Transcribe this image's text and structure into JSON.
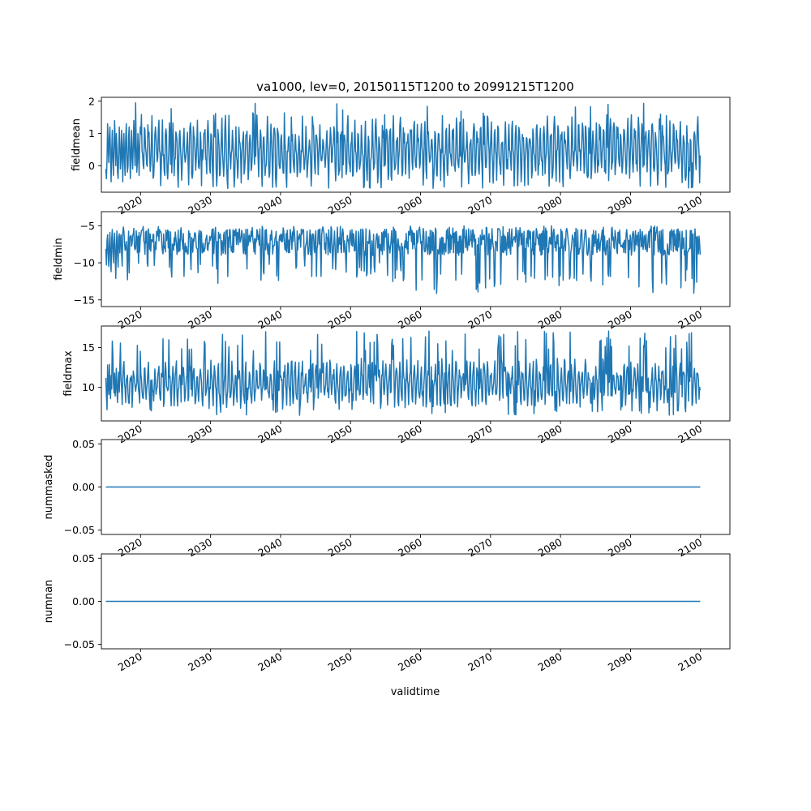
{
  "figure": {
    "title": "va1000, lev=0, 20150115T1200 to 20991215T1200",
    "xlabel": "validtime"
  },
  "chart_data": [
    {
      "type": "line",
      "ylabel": "fieldmean",
      "xlim": [
        2014.4,
        2104.2
      ],
      "ylim": [
        -0.82,
        2.12
      ],
      "yticks": [
        0,
        1,
        2
      ],
      "ytick_labels": [
        "0",
        "1",
        "2"
      ],
      "xticks": [
        2020,
        2030,
        2040,
        2050,
        2060,
        2070,
        2080,
        2090,
        2100
      ],
      "xtick_labels": [
        "2020",
        "2030",
        "2040",
        "2050",
        "2060",
        "2070",
        "2080",
        "2090",
        "2100"
      ],
      "series_note": "monthly values 2015-01 to 2099-12",
      "x": [
        2015.04,
        2015.12,
        2015.21,
        2015.29,
        2015.37,
        2015.46,
        2015.54,
        2015.62,
        2015.71,
        2015.79,
        2015.87,
        2015.96,
        2016.04,
        2016.12,
        2016.21,
        2016.29,
        2016.37,
        2016.46,
        2016.54,
        2016.62,
        2016.71,
        2016.79,
        2016.87,
        2016.96,
        2017.04,
        2017.12,
        2017.21,
        2017.29,
        2017.37,
        2017.46,
        2017.54,
        2017.62,
        2017.71,
        2017.79,
        2017.87,
        2017.96,
        2018.04,
        2018.12,
        2018.21,
        2018.29,
        2018.37,
        2018.46,
        2018.54,
        2018.62,
        2018.71,
        2018.79,
        2018.87,
        2018.96,
        2019.04,
        2019.12,
        2019.21,
        2019.29,
        2019.37,
        2019.46,
        2019.54,
        2019.62,
        2019.71,
        2019.79,
        2019.87,
        2019.96
      ],
      "y": [
        -0.1,
        -0.4,
        0.2,
        1.3,
        0.6,
        0.1,
        0.9,
        1.2,
        0.3,
        -0.5,
        0.4,
        1.1,
        0.2,
        -0.3,
        0.5,
        1.4,
        0.8,
        0.0,
        1.0,
        0.6,
        -0.2,
        -0.4,
        0.3,
        1.2,
        0.7,
        -0.1,
        0.2,
        1.1,
        0.5,
        -0.5,
        0.6,
        1.0,
        0.1,
        -0.3,
        0.8,
        1.3,
        0.4,
        -0.2,
        0.0,
        0.9,
        1.2,
        0.3,
        -0.4,
        0.5,
        1.1,
        0.2,
        -0.1,
        0.7,
        1.4,
        0.6,
        0.0,
        1.95,
        0.8,
        -0.2,
        0.1,
        1.0,
        0.4,
        -0.3,
        0.6,
        1.2
      ]
    },
    {
      "type": "line",
      "ylabel": "fieldmin",
      "xlim": [
        2014.4,
        2104.2
      ],
      "ylim": [
        -15.9,
        -3.1
      ],
      "yticks": [
        -15,
        -10,
        -5
      ],
      "ytick_labels": [
        "−15",
        "−10",
        "−5"
      ],
      "xticks": [
        2020,
        2030,
        2040,
        2050,
        2060,
        2070,
        2080,
        2090,
        2100
      ],
      "xtick_labels": [
        "2020",
        "2030",
        "2040",
        "2050",
        "2060",
        "2070",
        "2080",
        "2090",
        "2100"
      ],
      "series_note": "monthly values 2015-01 to 2099-12",
      "x": [
        2015.04,
        2015.12,
        2015.21,
        2015.29,
        2015.37,
        2015.46,
        2015.54,
        2015.62,
        2015.71,
        2015.79,
        2015.87,
        2015.96,
        2016.04,
        2016.12,
        2016.21,
        2016.29,
        2016.37,
        2016.46,
        2016.54,
        2016.62,
        2016.71,
        2016.79,
        2016.87,
        2016.96
      ],
      "y": [
        -8.1,
        -10.3,
        -7.0,
        -6.2,
        -8.8,
        -10.5,
        -7.4,
        -5.9,
        -9.6,
        -11.2,
        -6.8,
        -5.5,
        -8.3,
        -10.0,
        -7.2,
        -6.0,
        -9.1,
        -12.1,
        -7.8,
        -5.7,
        -8.9,
        -10.6,
        -6.5,
        -6.1
      ]
    },
    {
      "type": "line",
      "ylabel": "fieldmax",
      "xlim": [
        2014.4,
        2104.2
      ],
      "ylim": [
        5.8,
        17.7
      ],
      "yticks": [
        10,
        15
      ],
      "ytick_labels": [
        "10",
        "15"
      ],
      "xticks": [
        2020,
        2030,
        2040,
        2050,
        2060,
        2070,
        2080,
        2090,
        2100
      ],
      "xtick_labels": [
        "2020",
        "2030",
        "2040",
        "2050",
        "2060",
        "2070",
        "2080",
        "2090",
        "2100"
      ],
      "series_note": "monthly values 2015-01 to 2099-12",
      "x": [
        2015.04,
        2015.12,
        2015.21,
        2015.29,
        2015.37,
        2015.46,
        2015.54,
        2015.62,
        2015.71,
        2015.79,
        2015.87,
        2015.96,
        2016.04,
        2016.12,
        2016.21,
        2016.29,
        2016.37,
        2016.46,
        2016.54,
        2016.62,
        2016.71,
        2016.79,
        2016.87,
        2016.96
      ],
      "y": [
        11.2,
        9.0,
        7.2,
        12.8,
        10.4,
        9.1,
        12.9,
        10.1,
        8.6,
        11.5,
        9.8,
        15.8,
        14.2,
        10.6,
        9.3,
        11.8,
        8.9,
        10.2,
        12.4,
        9.5,
        8.1,
        10.8,
        11.9,
        9.4
      ]
    },
    {
      "type": "line",
      "ylabel": "nummasked",
      "xlim": [
        2014.4,
        2104.2
      ],
      "ylim": [
        -0.055,
        0.055
      ],
      "yticks": [
        -0.05,
        0.0,
        0.05
      ],
      "ytick_labels": [
        "−0.05",
        "0.00",
        "0.05"
      ],
      "xticks": [
        2020,
        2030,
        2040,
        2050,
        2060,
        2070,
        2080,
        2090,
        2100
      ],
      "xtick_labels": [
        "2020",
        "2030",
        "2040",
        "2050",
        "2060",
        "2070",
        "2080",
        "2090",
        "2100"
      ],
      "x": [
        2015.04,
        2099.96
      ],
      "y": [
        0,
        0
      ]
    },
    {
      "type": "line",
      "ylabel": "numnan",
      "xlim": [
        2014.4,
        2104.2
      ],
      "ylim": [
        -0.055,
        0.055
      ],
      "yticks": [
        -0.05,
        0.0,
        0.05
      ],
      "ytick_labels": [
        "−0.05",
        "0.00",
        "0.05"
      ],
      "xticks": [
        2020,
        2030,
        2040,
        2050,
        2060,
        2070,
        2080,
        2090,
        2100
      ],
      "xtick_labels": [
        "2020",
        "2030",
        "2040",
        "2050",
        "2060",
        "2070",
        "2080",
        "2090",
        "2100"
      ],
      "x": [
        2015.04,
        2099.96
      ],
      "y": [
        0,
        0
      ]
    }
  ],
  "colors": {
    "line": "#1f77b4",
    "axes": "#000000"
  }
}
